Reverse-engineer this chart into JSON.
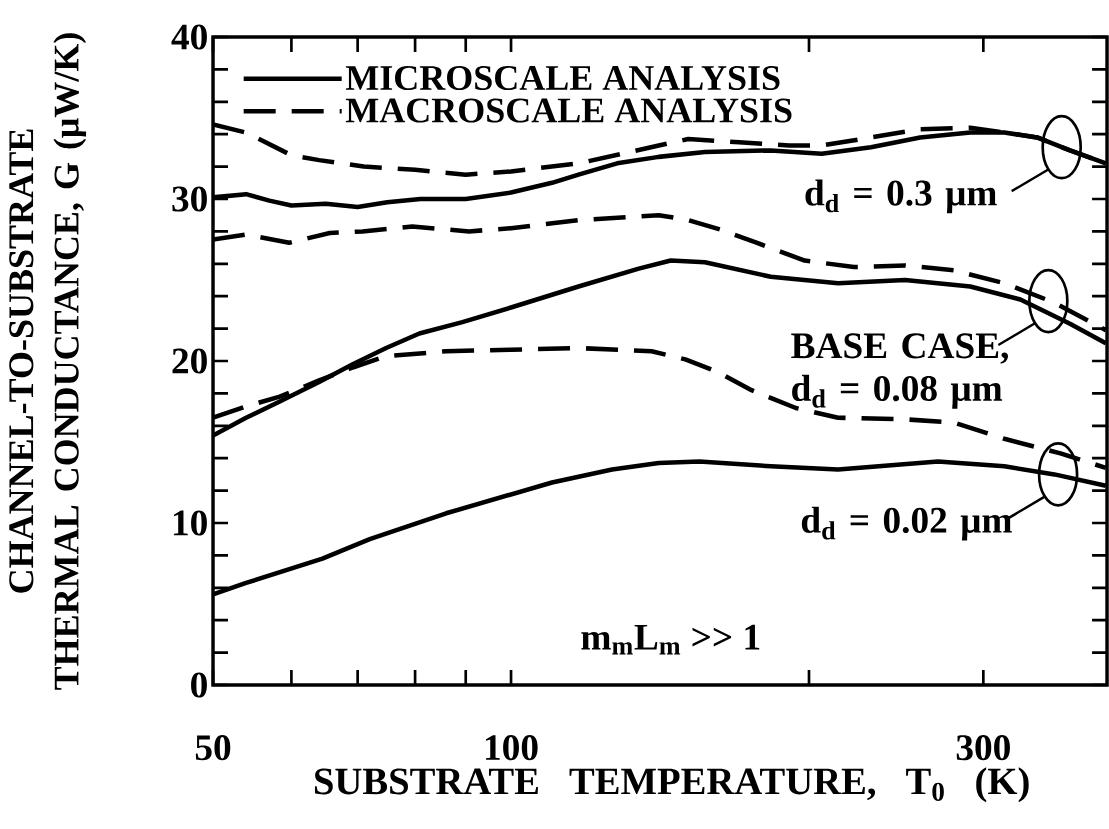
{
  "chart_data": {
    "type": "line",
    "xlabel": "SUBSTRATE TEMPERATURE, T$_{0}$ (K)",
    "ylabel": "CHANNEL-TO-SUBSTRATE THERMAL CONDUCTANCE, G (μW/K)",
    "log": "x",
    "xlim": [
      50,
      400
    ],
    "ylim": [
      0,
      40
    ],
    "xticks": [
      50,
      {
        "value": 60,
        "label": null
      },
      {
        "value": 70,
        "label": null
      },
      {
        "value": 80,
        "label": null
      },
      {
        "value": 90,
        "label": null
      },
      100,
      {
        "value": 200,
        "label": null
      },
      300
    ],
    "yticks": [
      0,
      {
        "value": 2,
        "label": null
      },
      {
        "value": 4,
        "label": null
      },
      {
        "value": 6,
        "label": null
      },
      {
        "value": 8,
        "label": null
      },
      10,
      {
        "value": 12,
        "label": null
      },
      {
        "value": 14,
        "label": null
      },
      {
        "value": 16,
        "label": null
      },
      {
        "value": 18,
        "label": null
      },
      20,
      {
        "value": 22,
        "label": null
      },
      {
        "value": 24,
        "label": null
      },
      {
        "value": 26,
        "label": null
      },
      {
        "value": 28,
        "label": null
      },
      30,
      {
        "value": 32,
        "label": null
      },
      {
        "value": 34,
        "label": null
      },
      {
        "value": 36,
        "label": null
      },
      {
        "value": 38,
        "label": null
      },
      40
    ],
    "legend": "top left",
    "series": [
      {
        "name": "MICROSCALE ANALYSIS",
        "color": "#000000",
        "line_style": "solid",
        "x": [
          50,
          54,
          57,
          60,
          65,
          70,
          75,
          81,
          90,
          100,
          110,
          117,
          128,
          141,
          157,
          183,
          206,
          231,
          259,
          291,
          315,
          340,
          367,
          399
        ],
        "values": [
          30.1,
          30.3,
          29.9,
          29.6,
          29.7,
          29.5,
          29.8,
          30.0,
          30.0,
          30.4,
          31.0,
          31.5,
          32.2,
          32.6,
          32.9,
          33.0,
          32.8,
          33.2,
          33.8,
          34.1,
          34.1,
          33.8,
          33.0,
          32.2
        ]
      },
      {
        "name": "MACROSCALE ANALYSIS",
        "color": "#000000",
        "line_style": "dashed",
        "x": [
          50,
          54,
          60,
          64,
          71,
          80,
          90,
          100,
          117,
          141,
          151,
          170,
          191,
          206,
          231,
          259,
          291,
          315,
          340,
          367,
          399
        ],
        "values": [
          34.6,
          34.1,
          32.7,
          32.4,
          32.0,
          31.8,
          31.5,
          31.7,
          32.2,
          33.3,
          33.7,
          33.5,
          33.3,
          33.3,
          33.8,
          34.3,
          34.4,
          34.1,
          33.8,
          33.0,
          32.2
        ]
      },
      {
        "color": "#000000",
        "line_style": "solid",
        "x": [
          50,
          54,
          58.4,
          64,
          69.2,
          74.8,
          80.8,
          89.3,
          100,
          117,
          134.6,
          145,
          157,
          183,
          214,
          250,
          291,
          327,
          367,
          399
        ],
        "values": [
          15.4,
          16.5,
          17.5,
          18.7,
          19.8,
          20.8,
          21.7,
          22.4,
          23.3,
          24.6,
          25.7,
          26.2,
          26.1,
          25.2,
          24.8,
          25.0,
          24.6,
          23.8,
          22.3,
          21.1
        ]
      },
      {
        "color": "#000000",
        "line_style": "dashed",
        "x": [
          50,
          54,
          59.7,
          65.6,
          70.8,
          79.5,
          90.7,
          100,
          117,
          141,
          151,
          163,
          177,
          198,
          222,
          250,
          280,
          315,
          354,
          399
        ],
        "values": [
          27.5,
          27.8,
          27.3,
          27.9,
          28.0,
          28.3,
          28.0,
          28.2,
          28.7,
          29.0,
          28.7,
          28.1,
          27.3,
          26.2,
          25.8,
          25.9,
          25.6,
          24.8,
          23.6,
          21.9
        ]
      },
      {
        "color": "#000000",
        "line_style": "solid",
        "x": [
          50,
          54,
          64.5,
          72,
          86,
          110,
          126.5,
          141,
          155,
          183,
          214,
          270,
          315,
          354,
          399
        ],
        "values": [
          5.6,
          6.3,
          7.8,
          9.0,
          10.6,
          12.5,
          13.3,
          13.7,
          13.8,
          13.5,
          13.3,
          13.8,
          13.5,
          13.0,
          12.3
        ]
      },
      {
        "color": "#000000",
        "line_style": "dashed",
        "x": [
          50,
          54,
          58.4,
          64,
          69.2,
          74.8,
          86,
          100,
          117,
          138.7,
          150,
          162,
          175,
          194,
          214,
          250,
          280,
          315,
          359,
          399
        ],
        "values": [
          16.5,
          17.2,
          17.8,
          18.8,
          19.6,
          20.3,
          20.6,
          20.7,
          20.8,
          20.6,
          20.1,
          19.3,
          18.2,
          17.1,
          16.5,
          16.4,
          16.2,
          15.2,
          14.3,
          13.4
        ]
      }
    ],
    "annotations": [
      {
        "text": "d$_{d}$ = 0.3 μm",
        "x": 360,
        "y": 33.2
      },
      {
        "text": "BASE CASE, d$_{d}$ = 0.08 μm",
        "x": 349,
        "y": 23.7
      },
      {
        "text": "d$_{d}$ = 0.02 μm",
        "x": 357,
        "y": 13.0
      },
      "m$_{m}$L$_{m}$ >> 1"
    ]
  }
}
